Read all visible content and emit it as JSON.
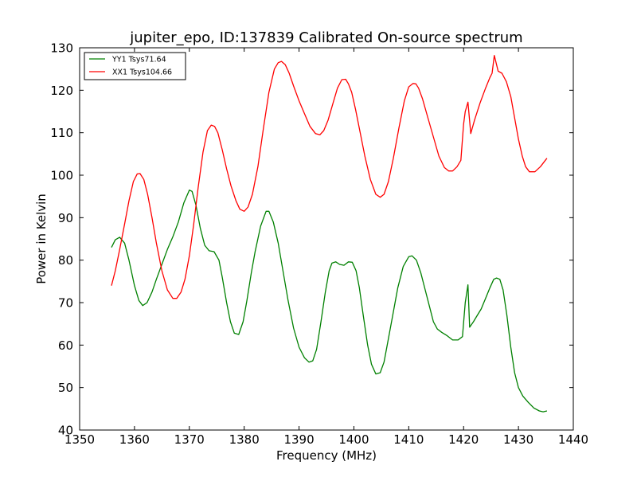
{
  "chart_data": {
    "type": "line",
    "title": "jupiter_epo, ID:137839 Calibrated On-source spectrum",
    "xlabel": "Frequency (MHz)",
    "ylabel": "Power in Kelvin",
    "xlim": [
      1350,
      1440
    ],
    "ylim": [
      40,
      130
    ],
    "xticks": [
      1350,
      1360,
      1370,
      1380,
      1390,
      1400,
      1410,
      1420,
      1430,
      1440
    ],
    "yticks": [
      40,
      50,
      60,
      70,
      80,
      90,
      100,
      110,
      120,
      130
    ],
    "grid": false,
    "legend_position": "top-left",
    "series": [
      {
        "name": "YY1 Tsys71.64",
        "color": "#008000",
        "x": [
          1355.8,
          1356.5,
          1357.3,
          1358.2,
          1359.0,
          1360.0,
          1360.8,
          1361.5,
          1362.3,
          1363.2,
          1364.0,
          1365.0,
          1366.0,
          1367.0,
          1368.0,
          1369.0,
          1370.0,
          1370.5,
          1371.2,
          1372.0,
          1372.8,
          1373.6,
          1374.5,
          1375.4,
          1376.0,
          1376.8,
          1377.5,
          1378.2,
          1379.0,
          1379.8,
          1380.5,
          1381.3,
          1382.0,
          1383.0,
          1384.0,
          1384.5,
          1385.3,
          1386.2,
          1387.0,
          1388.0,
          1389.0,
          1390.0,
          1391.0,
          1391.8,
          1392.5,
          1393.2,
          1394.0,
          1394.8,
          1395.5,
          1396.0,
          1396.7,
          1397.4,
          1398.2,
          1399.0,
          1399.7,
          1400.4,
          1401.0,
          1401.7,
          1402.5,
          1403.2,
          1404.0,
          1404.8,
          1405.5,
          1406.3,
          1407.0,
          1408.0,
          1409.0,
          1410.0,
          1410.6,
          1411.4,
          1412.2,
          1413.0,
          1413.8,
          1414.5,
          1415.2,
          1416.0,
          1417.0,
          1418.0,
          1419.0,
          1419.8,
          1420.3,
          1420.8,
          1421.1,
          1421.8,
          1422.5,
          1423.2,
          1424.0,
          1424.8,
          1425.5,
          1426.0,
          1426.6,
          1427.2,
          1427.9,
          1428.6,
          1429.3,
          1430.0,
          1430.8,
          1431.8,
          1432.8,
          1433.8,
          1434.5,
          1435.2
        ],
        "values": [
          83,
          84.8,
          85.4,
          84.0,
          80.0,
          74.0,
          70.5,
          69.3,
          70.0,
          72.5,
          75.5,
          79.0,
          82.5,
          85.5,
          89.0,
          93.5,
          96.5,
          96.2,
          93.0,
          87.5,
          83.5,
          82.2,
          82.0,
          80.0,
          76.0,
          70.0,
          65.5,
          62.8,
          62.5,
          65.5,
          70.5,
          77.0,
          82.0,
          88.0,
          91.5,
          91.5,
          89.0,
          84.0,
          78.0,
          70.5,
          64.0,
          59.5,
          57.0,
          56.0,
          56.3,
          59.0,
          65.5,
          72.5,
          77.5,
          79.3,
          79.6,
          79.0,
          78.8,
          79.6,
          79.5,
          77.5,
          73.5,
          67.0,
          60.0,
          55.5,
          53.2,
          53.5,
          56.0,
          61.5,
          66.5,
          73.5,
          78.5,
          80.8,
          81.0,
          80.0,
          77.0,
          73.0,
          69.0,
          65.5,
          63.8,
          63.0,
          62.2,
          61.2,
          61.2,
          62.0,
          70.0,
          74.2,
          64.2,
          65.5,
          67.0,
          68.5,
          71.0,
          73.5,
          75.5,
          75.8,
          75.5,
          73.0,
          67.0,
          59.5,
          53.5,
          50.0,
          48.0,
          46.5,
          45.2,
          44.5,
          44.3,
          44.5
        ]
      },
      {
        "name": "XX1 Tsys104.66",
        "color": "#ff0000",
        "x": [
          1355.8,
          1356.5,
          1357.3,
          1358.2,
          1359.0,
          1359.8,
          1360.5,
          1361.0,
          1361.7,
          1362.4,
          1363.2,
          1364.0,
          1365.0,
          1366.0,
          1367.0,
          1367.7,
          1368.5,
          1369.2,
          1370.0,
          1370.8,
          1371.6,
          1372.5,
          1373.3,
          1374.0,
          1374.6,
          1375.2,
          1376.0,
          1376.8,
          1377.6,
          1378.5,
          1379.2,
          1380.0,
          1380.7,
          1381.5,
          1382.5,
          1383.5,
          1384.5,
          1385.5,
          1386.2,
          1386.8,
          1387.5,
          1388.2,
          1389.0,
          1390.0,
          1391.0,
          1392.0,
          1393.0,
          1393.8,
          1394.5,
          1395.3,
          1396.2,
          1397.0,
          1397.8,
          1398.5,
          1399.0,
          1399.6,
          1400.3,
          1401.0,
          1402.0,
          1403.0,
          1404.0,
          1404.8,
          1405.5,
          1406.3,
          1407.2,
          1408.2,
          1409.2,
          1410.0,
          1410.8,
          1411.3,
          1411.8,
          1412.5,
          1413.5,
          1414.5,
          1415.5,
          1416.5,
          1417.3,
          1418.0,
          1418.8,
          1419.5,
          1420.0,
          1420.3,
          1420.8,
          1421.3,
          1422.0,
          1423.0,
          1424.0,
          1424.8,
          1425.2,
          1425.6,
          1426.3,
          1427.0,
          1427.8,
          1428.6,
          1429.3,
          1430.0,
          1430.7,
          1431.3,
          1432.0,
          1433.0,
          1434.0,
          1435.2
        ],
        "values": [
          74.0,
          77.5,
          82.5,
          88.5,
          94.0,
          98.5,
          100.3,
          100.4,
          99.0,
          95.5,
          90.0,
          84.0,
          77.5,
          73.0,
          71.0,
          71.0,
          72.5,
          75.5,
          81.0,
          88.5,
          97.0,
          105.5,
          110.5,
          111.8,
          111.5,
          110.0,
          106.0,
          101.5,
          97.5,
          94.0,
          92.0,
          91.5,
          92.5,
          95.5,
          102.0,
          111.0,
          119.5,
          125.0,
          126.5,
          126.8,
          126.0,
          124.0,
          121.0,
          117.5,
          114.5,
          111.5,
          109.8,
          109.5,
          110.5,
          113.0,
          117.0,
          120.5,
          122.5,
          122.6,
          121.5,
          119.5,
          115.5,
          111.0,
          104.5,
          99.0,
          95.5,
          94.8,
          95.5,
          98.5,
          104.0,
          111.0,
          117.5,
          120.8,
          121.6,
          121.5,
          120.5,
          118.0,
          113.5,
          109.0,
          104.5,
          101.8,
          101.0,
          101.0,
          102.0,
          103.5,
          112.0,
          115.0,
          117.2,
          109.8,
          113.0,
          117.0,
          120.5,
          123.0,
          124.0,
          128.2,
          124.5,
          124.0,
          122.0,
          118.5,
          113.5,
          108.5,
          104.5,
          102.0,
          100.8,
          100.8,
          102.0,
          104.0
        ]
      }
    ]
  }
}
